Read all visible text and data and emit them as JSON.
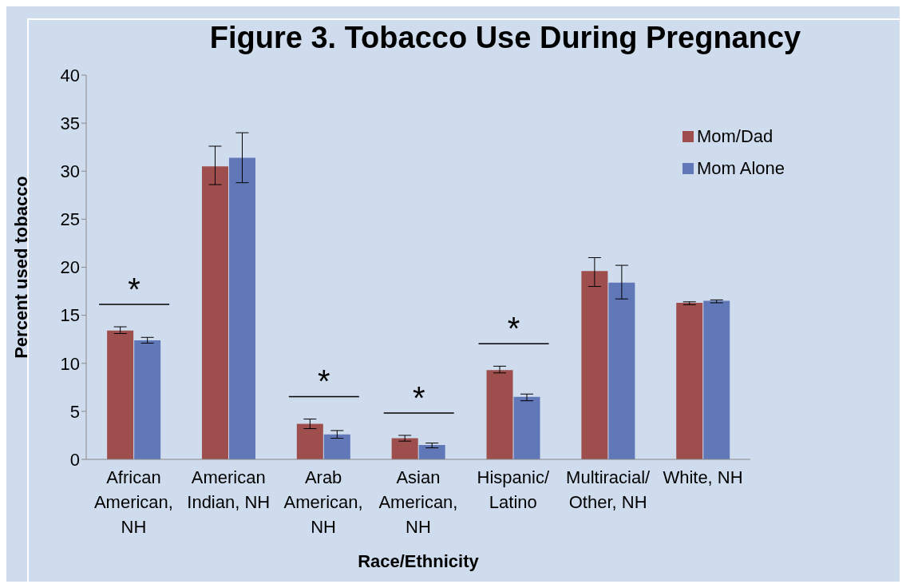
{
  "chart_data": {
    "type": "bar",
    "title": "Figure 3. Tobacco Use During Pregnancy",
    "xlabel": "Race/Ethnicity",
    "ylabel": "Percent used tobacco",
    "categories": [
      "African American, NH",
      "American Indian, NH",
      "Arab American, NH",
      "Asian American, NH",
      "Hispanic/Latino",
      "Multiracial/Other, NH",
      "White, NH"
    ],
    "series": [
      {
        "name": "Mom/Dad",
        "color": "#9e4f4d",
        "values": [
          13.4,
          30.5,
          3.7,
          2.2,
          9.3,
          19.6,
          16.3
        ],
        "errors": [
          [
            13.1,
            13.8
          ],
          [
            28.6,
            32.6
          ],
          [
            3.2,
            4.2
          ],
          [
            1.9,
            2.5
          ],
          [
            9.0,
            9.7
          ],
          [
            18.0,
            21.0
          ],
          [
            16.1,
            16.4
          ]
        ]
      },
      {
        "name": "Mom Alone",
        "color": "#6178b8",
        "values": [
          12.4,
          31.4,
          2.6,
          1.5,
          6.5,
          18.4,
          16.5
        ],
        "errors": [
          [
            12.1,
            12.7
          ],
          [
            28.8,
            34.0
          ],
          [
            2.2,
            3.0
          ],
          [
            1.2,
            1.7
          ],
          [
            6.1,
            6.8
          ],
          [
            16.7,
            20.2
          ],
          [
            16.3,
            16.6
          ]
        ]
      }
    ],
    "ylim": [
      0,
      40
    ],
    "yticks": [
      0,
      5,
      10,
      15,
      20,
      25,
      30,
      35,
      40
    ],
    "grid": false,
    "legend": "top right",
    "annotations": [
      "*",
      "*",
      "*",
      "*"
    ]
  }
}
